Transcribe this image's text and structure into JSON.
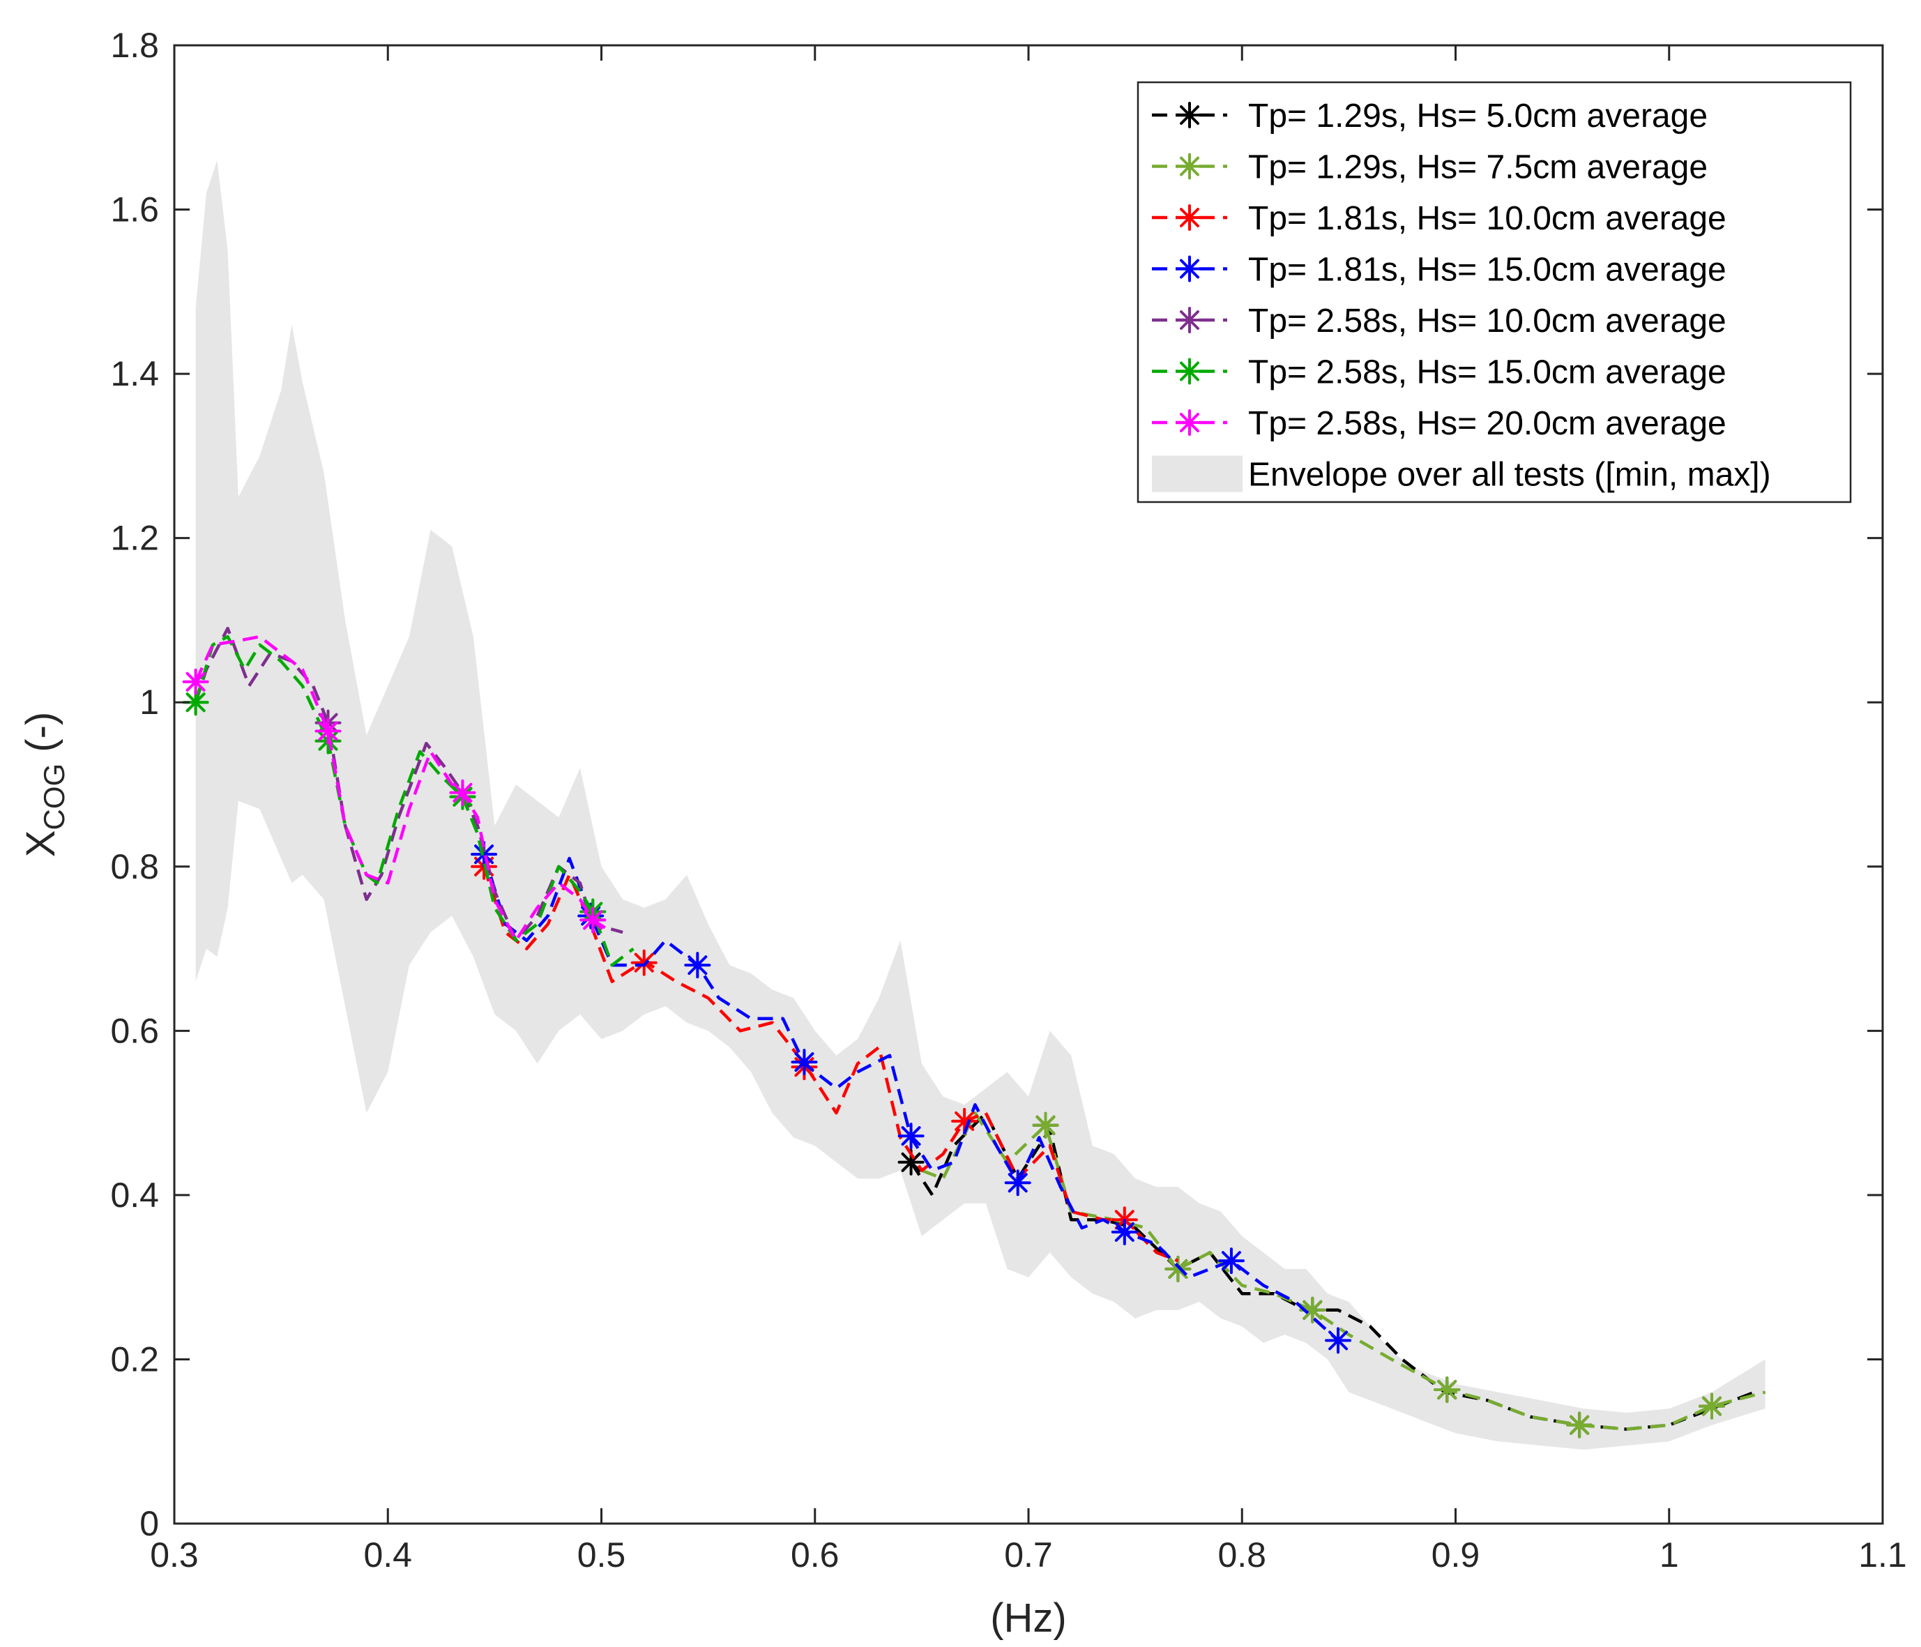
{
  "chart_data": {
    "type": "line",
    "xlabel": "(Hz)",
    "ylabel": {
      "main": "X",
      "subscript": "COG",
      "suffix": " (-)"
    },
    "xlim": [
      0.3,
      1.1
    ],
    "ylim": [
      0,
      1.8
    ],
    "xticks": [
      0.3,
      0.4,
      0.5,
      0.6,
      0.7,
      0.8,
      0.9,
      1,
      1.1
    ],
    "xtick_labels": [
      "0.3",
      "0.4",
      "0.5",
      "0.6",
      "0.7",
      "0.8",
      "0.9",
      "1",
      "1.1"
    ],
    "yticks": [
      0,
      0.2,
      0.4,
      0.6,
      0.8,
      1,
      1.2,
      1.4,
      1.6,
      1.8
    ],
    "ytick_labels": [
      "0",
      "0.2",
      "0.4",
      "0.6",
      "0.8",
      "1",
      "1.2",
      "1.4",
      "1.6",
      "1.8"
    ],
    "grid": false,
    "legend_position": "top-right",
    "envelope": {
      "label": "Envelope over all tests ([min, max])",
      "color": "#e6e6e6",
      "x": [
        0.31,
        0.315,
        0.32,
        0.325,
        0.33,
        0.34,
        0.35,
        0.355,
        0.36,
        0.37,
        0.38,
        0.39,
        0.4,
        0.41,
        0.42,
        0.43,
        0.44,
        0.45,
        0.46,
        0.47,
        0.48,
        0.49,
        0.5,
        0.51,
        0.52,
        0.53,
        0.54,
        0.55,
        0.56,
        0.57,
        0.58,
        0.59,
        0.6,
        0.61,
        0.62,
        0.63,
        0.64,
        0.65,
        0.66,
        0.67,
        0.68,
        0.69,
        0.7,
        0.71,
        0.72,
        0.73,
        0.74,
        0.75,
        0.76,
        0.77,
        0.78,
        0.79,
        0.8,
        0.81,
        0.82,
        0.83,
        0.84,
        0.85,
        0.86,
        0.87,
        0.88,
        0.89,
        0.9,
        0.92,
        0.94,
        0.96,
        0.98,
        1.0,
        1.02,
        1.045
      ],
      "upper": [
        1.48,
        1.62,
        1.66,
        1.55,
        1.25,
        1.3,
        1.38,
        1.46,
        1.39,
        1.28,
        1.1,
        0.96,
        1.02,
        1.08,
        1.21,
        1.19,
        1.08,
        0.85,
        0.9,
        0.88,
        0.86,
        0.92,
        0.8,
        0.76,
        0.75,
        0.76,
        0.79,
        0.73,
        0.68,
        0.67,
        0.65,
        0.64,
        0.6,
        0.57,
        0.59,
        0.64,
        0.71,
        0.56,
        0.52,
        0.51,
        0.53,
        0.55,
        0.52,
        0.6,
        0.57,
        0.46,
        0.45,
        0.42,
        0.41,
        0.41,
        0.39,
        0.38,
        0.35,
        0.33,
        0.31,
        0.31,
        0.28,
        0.27,
        0.24,
        0.21,
        0.19,
        0.18,
        0.17,
        0.16,
        0.15,
        0.14,
        0.135,
        0.14,
        0.16,
        0.2
      ],
      "lower": [
        0.66,
        0.7,
        0.69,
        0.75,
        0.88,
        0.87,
        0.81,
        0.78,
        0.79,
        0.76,
        0.63,
        0.5,
        0.55,
        0.68,
        0.72,
        0.74,
        0.69,
        0.62,
        0.6,
        0.56,
        0.6,
        0.62,
        0.59,
        0.6,
        0.62,
        0.63,
        0.61,
        0.6,
        0.58,
        0.55,
        0.5,
        0.47,
        0.46,
        0.44,
        0.42,
        0.42,
        0.43,
        0.35,
        0.37,
        0.39,
        0.39,
        0.31,
        0.3,
        0.33,
        0.3,
        0.28,
        0.27,
        0.25,
        0.26,
        0.26,
        0.27,
        0.25,
        0.24,
        0.22,
        0.23,
        0.22,
        0.2,
        0.16,
        0.15,
        0.14,
        0.13,
        0.12,
        0.11,
        0.1,
        0.095,
        0.09,
        0.095,
        0.1,
        0.12,
        0.14
      ]
    },
    "series": [
      {
        "name": "Tp= 1.29s, Hs= 5.0cm average",
        "color": "#000000",
        "x": [
          0.645,
          0.655,
          0.665,
          0.68,
          0.695,
          0.71,
          0.72,
          0.735,
          0.75,
          0.77,
          0.785,
          0.8,
          0.815,
          0.83,
          0.845,
          0.86,
          0.875,
          0.895,
          0.915,
          0.935,
          0.958,
          0.98,
          1.0,
          1.02,
          1.04
        ],
        "y": [
          0.44,
          0.4,
          0.46,
          0.5,
          0.42,
          0.48,
          0.37,
          0.37,
          0.36,
          0.31,
          0.33,
          0.28,
          0.28,
          0.26,
          0.26,
          0.24,
          0.2,
          0.16,
          0.15,
          0.13,
          0.12,
          0.115,
          0.12,
          0.14,
          0.16
        ],
        "markers_x": [
          0.645,
          0.708,
          0.77,
          0.833,
          0.896,
          0.958,
          1.02
        ],
        "markers_y": [
          0.44,
          0.485,
          0.31,
          0.26,
          0.163,
          0.12,
          0.143
        ]
      },
      {
        "name": "Tp= 1.29s, Hs= 7.5cm average",
        "color": "#77ac30",
        "x": [
          0.65,
          0.66,
          0.675,
          0.69,
          0.708,
          0.72,
          0.74,
          0.755,
          0.77,
          0.785,
          0.8,
          0.815,
          0.833,
          0.85,
          0.87,
          0.896,
          0.915,
          0.935,
          0.958,
          0.98,
          1.0,
          1.02,
          1.045
        ],
        "y": [
          0.43,
          0.42,
          0.5,
          0.44,
          0.485,
          0.38,
          0.37,
          0.36,
          0.31,
          0.33,
          0.29,
          0.28,
          0.26,
          0.23,
          0.2,
          0.163,
          0.15,
          0.13,
          0.12,
          0.115,
          0.12,
          0.143,
          0.16
        ],
        "markers_x": [
          0.31,
          0.372,
          0.435,
          0.496,
          0.708,
          0.77,
          0.833,
          0.896,
          0.958,
          1.02
        ],
        "markers_y": [
          1.0,
          0.953,
          0.885,
          0.745,
          0.485,
          0.31,
          0.26,
          0.163,
          0.12,
          0.143
        ]
      },
      {
        "name": "Tp= 1.81s, Hs= 10.0cm average",
        "color": "#ff0000",
        "x": [
          0.445,
          0.455,
          0.465,
          0.475,
          0.485,
          0.495,
          0.505,
          0.52,
          0.535,
          0.55,
          0.565,
          0.58,
          0.595,
          0.61,
          0.62,
          0.63,
          0.64,
          0.65,
          0.66,
          0.67,
          0.68,
          0.695,
          0.71,
          0.72,
          0.735,
          0.745,
          0.76,
          0.77
        ],
        "y": [
          0.8,
          0.72,
          0.7,
          0.73,
          0.79,
          0.73,
          0.66,
          0.685,
          0.66,
          0.64,
          0.6,
          0.61,
          0.56,
          0.5,
          0.56,
          0.58,
          0.47,
          0.43,
          0.45,
          0.49,
          0.5,
          0.42,
          0.46,
          0.38,
          0.37,
          0.37,
          0.33,
          0.32
        ],
        "markers_x": [
          0.445,
          0.52,
          0.595,
          0.67,
          0.745
        ],
        "markers_y": [
          0.8,
          0.683,
          0.556,
          0.49,
          0.37
        ]
      },
      {
        "name": "Tp= 1.81s, Hs= 15.0cm average",
        "color": "#0000ff",
        "x": [
          0.445,
          0.455,
          0.465,
          0.475,
          0.485,
          0.495,
          0.505,
          0.52,
          0.53,
          0.545,
          0.555,
          0.57,
          0.585,
          0.595,
          0.61,
          0.62,
          0.635,
          0.645,
          0.655,
          0.665,
          0.675,
          0.685,
          0.695,
          0.705,
          0.715,
          0.725,
          0.735,
          0.745,
          0.76,
          0.775,
          0.795,
          0.81,
          0.825,
          0.845
        ],
        "y": [
          0.815,
          0.73,
          0.71,
          0.74,
          0.81,
          0.74,
          0.68,
          0.68,
          0.71,
          0.68,
          0.64,
          0.615,
          0.615,
          0.56,
          0.53,
          0.55,
          0.57,
          0.47,
          0.43,
          0.44,
          0.51,
          0.46,
          0.415,
          0.47,
          0.41,
          0.36,
          0.37,
          0.355,
          0.34,
          0.3,
          0.32,
          0.29,
          0.27,
          0.223
        ],
        "markers_x": [
          0.445,
          0.495,
          0.545,
          0.595,
          0.645,
          0.695,
          0.745,
          0.795,
          0.845
        ],
        "markers_y": [
          0.815,
          0.74,
          0.68,
          0.562,
          0.472,
          0.415,
          0.355,
          0.32,
          0.223
        ]
      },
      {
        "name": "Tp= 2.58s, Hs= 10.0cm average",
        "color": "#7e2f8e",
        "x": [
          0.31,
          0.315,
          0.325,
          0.335,
          0.345,
          0.355,
          0.365,
          0.372,
          0.38,
          0.39,
          0.397,
          0.405,
          0.418,
          0.427,
          0.435,
          0.442,
          0.45,
          0.46,
          0.47,
          0.48,
          0.49,
          0.496,
          0.51
        ],
        "y": [
          1.0,
          1.04,
          1.09,
          1.02,
          1.06,
          1.05,
          1.02,
          0.975,
          0.85,
          0.76,
          0.79,
          0.86,
          0.95,
          0.92,
          0.89,
          0.85,
          0.77,
          0.71,
          0.74,
          0.8,
          0.78,
          0.73,
          0.72
        ],
        "markers_x": [
          0.372,
          0.435,
          0.496
        ],
        "markers_y": [
          0.975,
          0.885,
          0.735
        ]
      },
      {
        "name": "Tp= 2.58s, Hs= 15.0cm average",
        "color": "#00aa00",
        "x": [
          0.31,
          0.318,
          0.325,
          0.333,
          0.34,
          0.35,
          0.36,
          0.372,
          0.38,
          0.39,
          0.395,
          0.405,
          0.415,
          0.425,
          0.435,
          0.442,
          0.45,
          0.46,
          0.47,
          0.48,
          0.49,
          0.496,
          0.505,
          0.515
        ],
        "y": [
          1.0,
          1.07,
          1.08,
          1.04,
          1.07,
          1.05,
          1.02,
          0.953,
          0.85,
          0.79,
          0.78,
          0.87,
          0.94,
          0.91,
          0.885,
          0.84,
          0.75,
          0.71,
          0.73,
          0.8,
          0.77,
          0.745,
          0.68,
          0.7
        ],
        "markers_x": [
          0.31,
          0.372,
          0.435,
          0.496
        ],
        "markers_y": [
          1.0,
          0.953,
          0.885,
          0.745
        ]
      },
      {
        "name": "Tp= 2.58s, Hs= 20.0cm average",
        "color": "#ff00ff",
        "x": [
          0.31,
          0.318,
          0.33,
          0.34,
          0.35,
          0.36,
          0.372,
          0.38,
          0.39,
          0.4,
          0.41,
          0.42,
          0.43,
          0.435,
          0.442,
          0.45,
          0.46,
          0.47,
          0.48,
          0.49,
          0.496,
          0.505
        ],
        "y": [
          1.025,
          1.07,
          1.075,
          1.08,
          1.06,
          1.04,
          0.965,
          0.85,
          0.79,
          0.78,
          0.87,
          0.94,
          0.9,
          0.89,
          0.86,
          0.76,
          0.71,
          0.75,
          0.78,
          0.76,
          0.735,
          0.72
        ],
        "markers_x": [
          0.31,
          0.372,
          0.435,
          0.496
        ],
        "markers_y": [
          1.025,
          0.965,
          0.89,
          0.735
        ]
      }
    ]
  }
}
